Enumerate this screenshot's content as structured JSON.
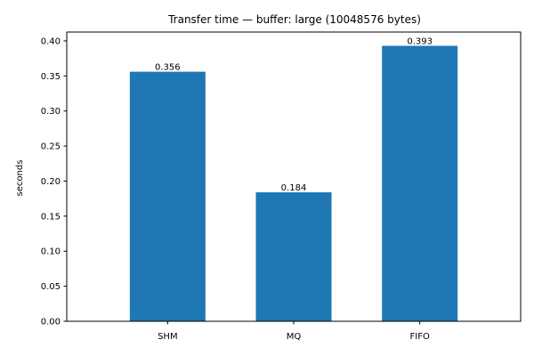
{
  "chart_data": {
    "type": "bar",
    "title": "Transfer time — buffer: large (10048576 bytes)",
    "xlabel": "",
    "ylabel": "seconds",
    "categories": [
      "SHM",
      "MQ",
      "FIFO"
    ],
    "values": [
      0.356,
      0.184,
      0.393
    ],
    "data_labels": [
      "0.356",
      "0.184",
      "0.393"
    ],
    "ylim": [
      0,
      0.41265
    ],
    "yticks": [
      0.0,
      0.05,
      0.1,
      0.15,
      0.2,
      0.25,
      0.3,
      0.35,
      0.4
    ],
    "ytick_labels": [
      "0.00",
      "0.05",
      "0.10",
      "0.15",
      "0.20",
      "0.25",
      "0.30",
      "0.35",
      "0.40"
    ],
    "grid": false,
    "bar_color": "#1f77b4"
  }
}
